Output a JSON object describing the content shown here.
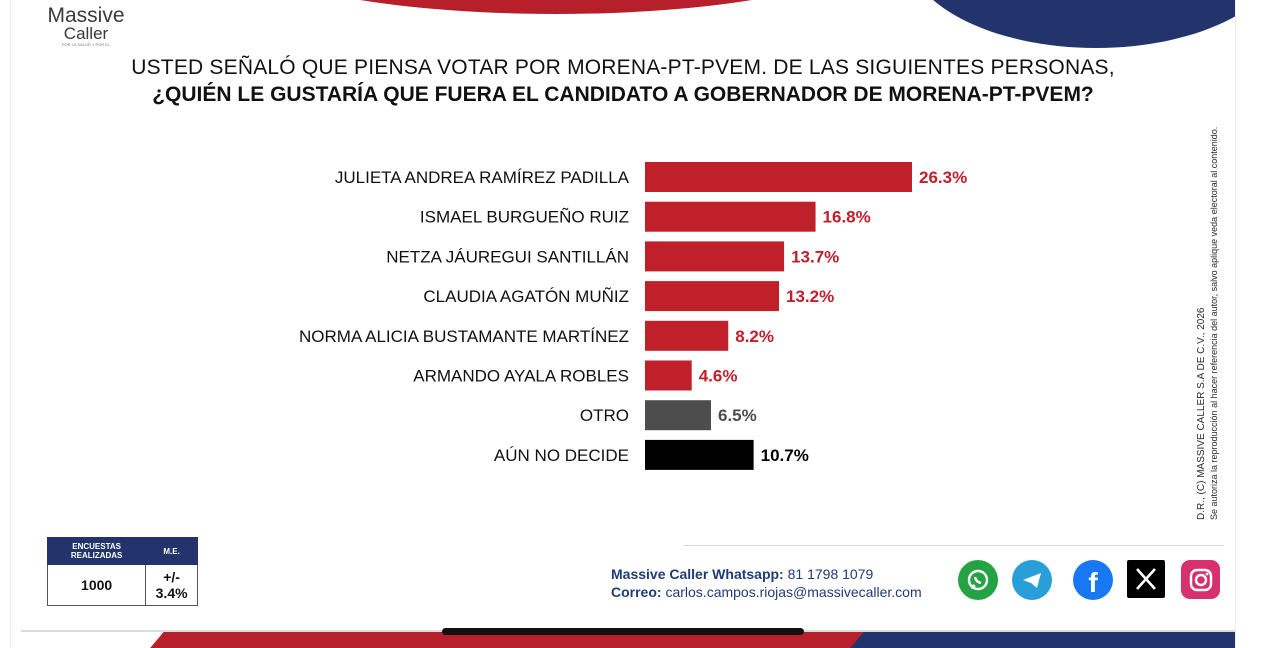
{
  "logo": {
    "line1": "Massive",
    "line2": "Caller",
    "tagline": "POR LA SALUD Y POR EL"
  },
  "title": {
    "line1": "USTED SEÑALÓ QUE PIENSA VOTAR POR MORENA-PT-PVEM. DE LAS SIGUIENTES PERSONAS,",
    "line2": "¿QUIÉN LE GUSTARÍA QUE FUERA EL CANDIDATO A GOBERNADOR DE MORENA-PT-PVEM?"
  },
  "chart_data": {
    "type": "bar",
    "orientation": "horizontal",
    "categories": [
      "JULIETA ANDREA RAMÍREZ PADILLA",
      "ISMAEL BURGUEÑO RUIZ",
      "NETZA JÁUREGUI SANTILLÁN",
      "CLAUDIA AGATÓN MUÑIZ",
      "NORMA ALICIA BUSTAMANTE MARTÍNEZ",
      "ARMANDO AYALA ROBLES",
      "OTRO",
      "AÚN NO DECIDE"
    ],
    "values": [
      26.3,
      16.8,
      13.7,
      13.2,
      8.2,
      4.6,
      6.5,
      10.7
    ],
    "value_labels": [
      "26.3%",
      "16.8%",
      "13.7%",
      "13.2%",
      "8.2%",
      "4.6%",
      "6.5%",
      "10.7%"
    ],
    "colors": [
      "#c0202a",
      "#c0202a",
      "#c0202a",
      "#c0202a",
      "#c0202a",
      "#c0202a",
      "#4d4d4d",
      "#000000"
    ],
    "label_colors": [
      "#c0202a",
      "#c0202a",
      "#c0202a",
      "#c0202a",
      "#c0202a",
      "#c0202a",
      "#4d4d4d",
      "#000000"
    ],
    "xlim": [
      0,
      26.3
    ],
    "grid": false
  },
  "side_note": {
    "line1": "D.R., (C) MASSIVE CALLER S.A DE C.V., 2026",
    "line2": "Se autoriza la reproducción al hacer referencia del autor, salvo aplique veda electoral al contenido."
  },
  "stats": {
    "header1": "ENCUESTAS REALIZADAS",
    "header2": "M.E.",
    "value1": "1000",
    "value2": "+/- 3.4%"
  },
  "contact": {
    "whatsapp_label": "Massive Caller Whatsapp:",
    "whatsapp_number": "81 1798 1079",
    "email_label": "Correo:",
    "email": "carlos.campos.riojas@massivecaller.com"
  },
  "social": [
    {
      "icon": "whatsapp-icon",
      "color": "#25a244"
    },
    {
      "icon": "telegram-icon",
      "color": "#2a9ed8"
    },
    {
      "icon": "facebook-icon",
      "color": "#1877f2"
    },
    {
      "icon": "x-icon",
      "color": "#000000"
    },
    {
      "icon": "instagram-icon",
      "color": "#d6306f"
    }
  ]
}
